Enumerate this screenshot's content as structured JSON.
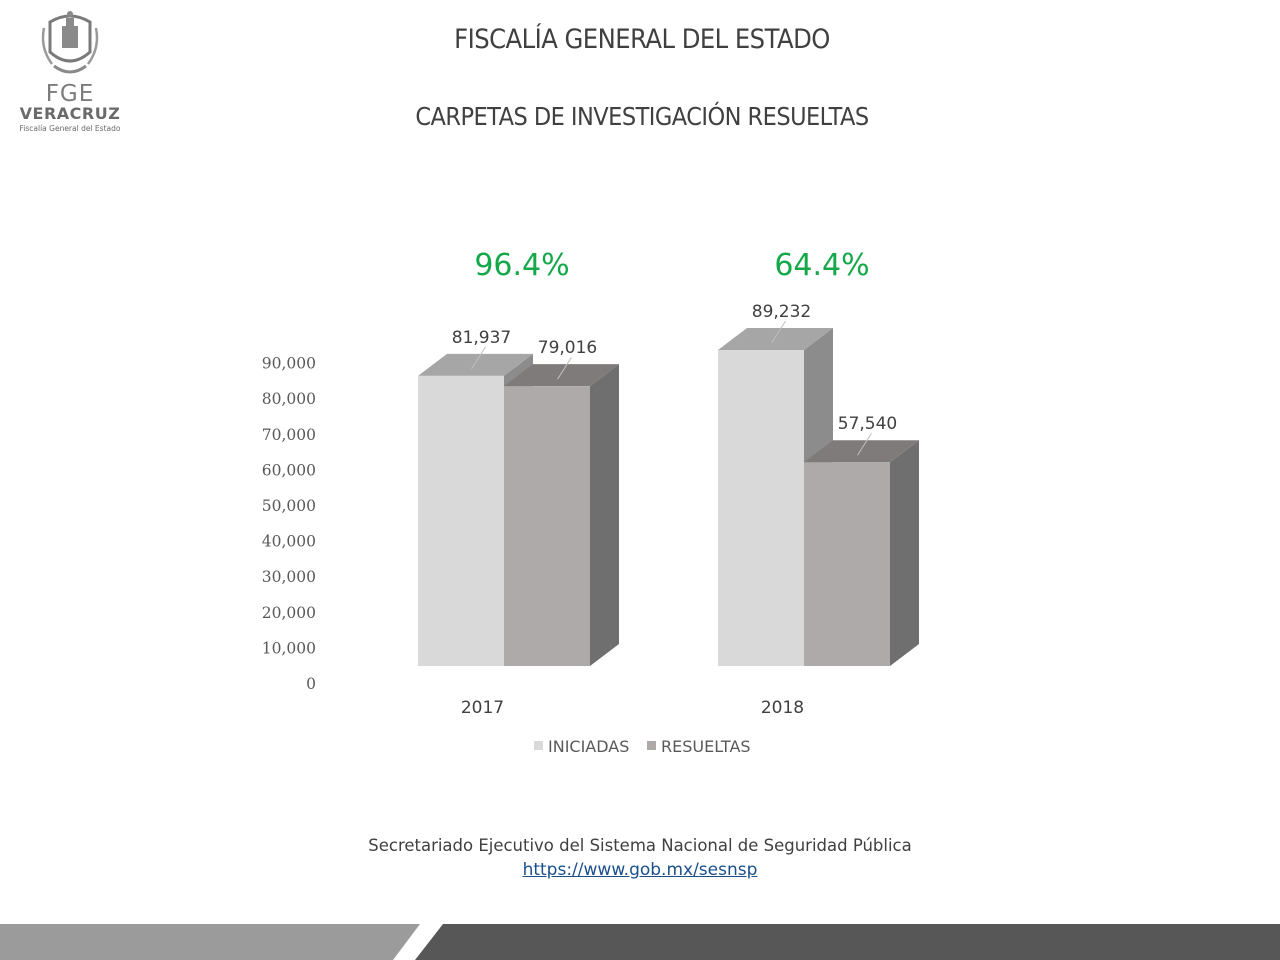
{
  "logo": {
    "acronym": "FGE",
    "state": "VERACRUZ",
    "subtitle": "Fiscalía General del Estado"
  },
  "header": {
    "title": "FISCALÍA GENERAL DEL ESTADO",
    "subtitle": "CARPETAS DE INVESTIGACIÓN RESUELTAS"
  },
  "chart_data": {
    "type": "bar",
    "style": "3d-clustered-column",
    "categories": [
      "2017",
      "2018"
    ],
    "series": [
      {
        "name": "INICIADAS",
        "values": [
          81937,
          89232
        ],
        "labels": [
          "81,937",
          "89,232"
        ],
        "color": "#d9d9d9"
      },
      {
        "name": "RESUELTAS",
        "values": [
          79016,
          57540
        ],
        "labels": [
          "79,016",
          "57,540"
        ],
        "color": "#aeaaaa"
      }
    ],
    "group_annotations": [
      "96.4%",
      "64.4%"
    ],
    "annotation_color": "#14a84a",
    "ylim": [
      0,
      90000
    ],
    "yticks": [
      "0",
      "10,000",
      "20,000",
      "30,000",
      "40,000",
      "50,000",
      "60,000",
      "70,000",
      "80,000",
      "90,000"
    ],
    "grid": false,
    "legend_position": "bottom"
  },
  "source": {
    "text": "Secretariado Ejecutivo del Sistema Nacional de Seguridad Pública",
    "link": "https://www.gob.mx/sesnsp"
  }
}
